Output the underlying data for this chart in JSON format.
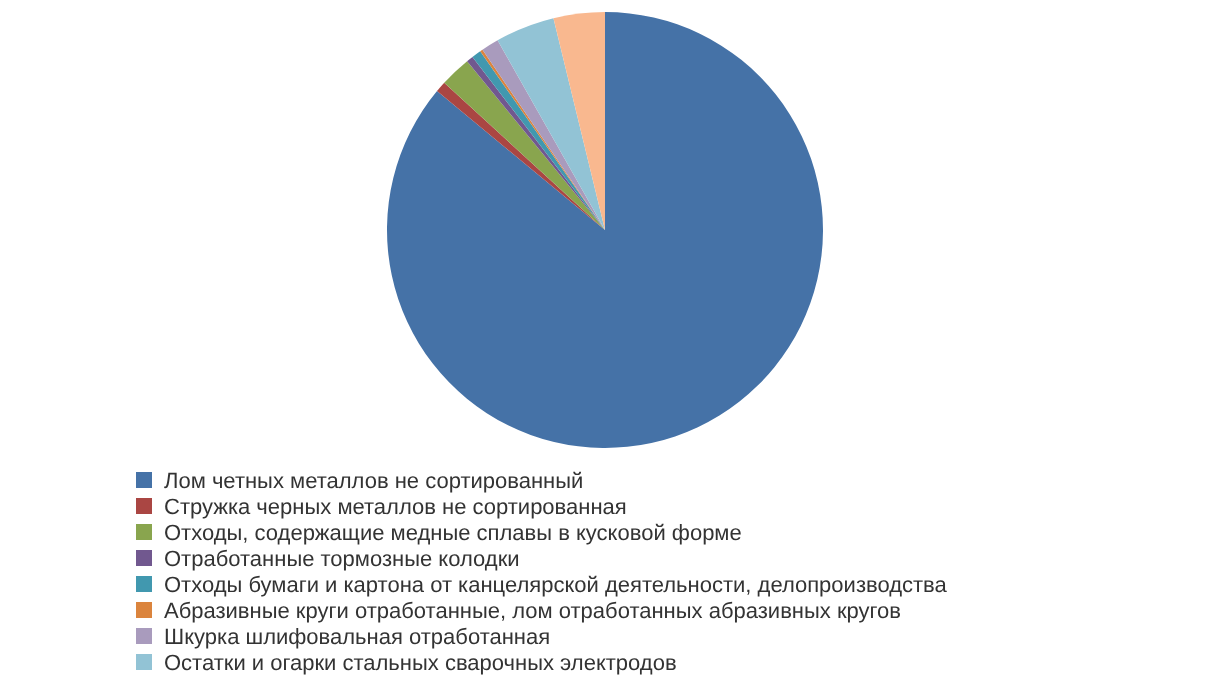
{
  "chart_data": {
    "type": "pie",
    "categories": [
      "Лом четных металлов не сортированный",
      "Стружка черных металлов не сортированная",
      "Отходы, содержащие медные сплавы в кусковой форме",
      "Отработанные тормозные колодки",
      "Отходы бумаги и картона от канцелярской деятельности, делопроизводства",
      "Абразивные круги отработанные, лом отработанных абразивных кругов",
      "Шкурка шлифовальная отработанная",
      "Остатки и огарки стальных сварочных электродов",
      null
    ],
    "values": [
      86.0,
      0.8,
      2.3,
      0.5,
      0.7,
      0.2,
      1.3,
      4.4,
      3.8
    ],
    "colors": [
      "#4572a7",
      "#aa4643",
      "#89a54e",
      "#71588f",
      "#4198af",
      "#db843d",
      "#a99bbd",
      "#92c3d5",
      "#f9b88f"
    ],
    "legend": "bottom"
  }
}
